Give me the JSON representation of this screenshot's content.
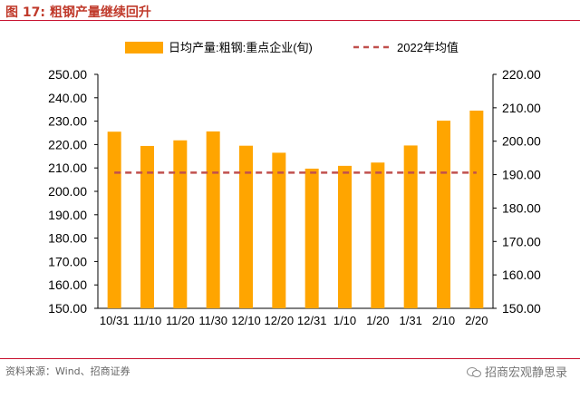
{
  "figure": {
    "label": "图 17:",
    "title": "粗钢产量继续回升"
  },
  "source_text": "资料来源：Wind、招商证券",
  "watermark_text": "招商宏观静思录",
  "colors": {
    "title": "#c03a2b",
    "bar": "#ffa500",
    "avg_line": "#c0504d",
    "rule": "#c8102e"
  },
  "chart_data": {
    "type": "bar",
    "legend_position": "top",
    "categories": [
      "10/31",
      "11/10",
      "11/20",
      "11/30",
      "12/10",
      "12/20",
      "12/31",
      "1/10",
      "1/20",
      "1/31",
      "2/10",
      "2/20"
    ],
    "series": [
      {
        "name": "日均产量:粗钢:重点企业(旬)",
        "type": "bar",
        "axis": "left",
        "values": [
          225.5,
          219.4,
          221.8,
          225.6,
          219.5,
          216.5,
          209.7,
          210.9,
          212.3,
          219.6,
          230.2,
          234.5
        ]
      },
      {
        "name": "2022年均值",
        "type": "line",
        "style": "dashed",
        "axis": "right",
        "values": [
          190.6,
          190.6,
          190.6,
          190.6,
          190.6,
          190.6,
          190.6,
          190.6,
          190.6,
          190.6,
          190.6,
          190.6
        ]
      }
    ],
    "y_left": {
      "min": 150,
      "max": 250,
      "step": 10,
      "ticks": [
        "150.00",
        "160.00",
        "170.00",
        "180.00",
        "190.00",
        "200.00",
        "210.00",
        "220.00",
        "230.00",
        "240.00",
        "250.00"
      ]
    },
    "y_right": {
      "min": 150,
      "max": 220,
      "step": 10,
      "ticks": [
        "150.00",
        "160.00",
        "170.00",
        "180.00",
        "190.00",
        "200.00",
        "210.00",
        "220.00"
      ]
    },
    "grid": false
  }
}
